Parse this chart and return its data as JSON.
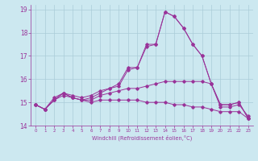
{
  "xlabel": "Windchill (Refroidissement éolien,°C)",
  "ylabel": "",
  "bg_color": "#cce8f0",
  "line_color": "#993399",
  "grid_color": "#aaccd8",
  "xlim": [
    -0.5,
    23.5
  ],
  "ylim": [
    14.0,
    19.2
  ],
  "yticks": [
    14,
    15,
    16,
    17,
    18,
    19
  ],
  "xticks": [
    0,
    1,
    2,
    3,
    4,
    5,
    6,
    7,
    8,
    9,
    10,
    11,
    12,
    13,
    14,
    15,
    16,
    17,
    18,
    19,
    20,
    21,
    22,
    23
  ],
  "series": [
    [
      14.9,
      14.7,
      15.1,
      15.4,
      15.2,
      15.1,
      15.2,
      15.4,
      15.6,
      15.7,
      16.4,
      16.5,
      17.4,
      17.5,
      18.9,
      18.7,
      18.2,
      17.5,
      17.0,
      15.8,
      14.9,
      14.9,
      15.0,
      14.3
    ],
    [
      14.9,
      14.7,
      15.1,
      15.3,
      15.2,
      15.1,
      15.1,
      15.3,
      15.4,
      15.5,
      15.6,
      15.6,
      15.7,
      15.8,
      15.9,
      15.9,
      15.9,
      15.9,
      15.9,
      15.8,
      14.8,
      14.8,
      14.9,
      14.4
    ],
    [
      14.9,
      14.7,
      15.1,
      15.4,
      15.2,
      15.1,
      15.0,
      15.1,
      15.1,
      15.1,
      15.1,
      15.1,
      15.0,
      15.0,
      15.0,
      14.9,
      14.9,
      14.8,
      14.8,
      14.7,
      14.6,
      14.6,
      14.6,
      14.3
    ],
    [
      14.9,
      14.7,
      15.2,
      15.4,
      15.3,
      15.2,
      15.3,
      15.5,
      15.6,
      15.8,
      16.5,
      16.5,
      17.5,
      17.5,
      18.9,
      18.7,
      18.2,
      17.5,
      17.0,
      15.8,
      14.9,
      14.9,
      15.0,
      14.3
    ]
  ]
}
